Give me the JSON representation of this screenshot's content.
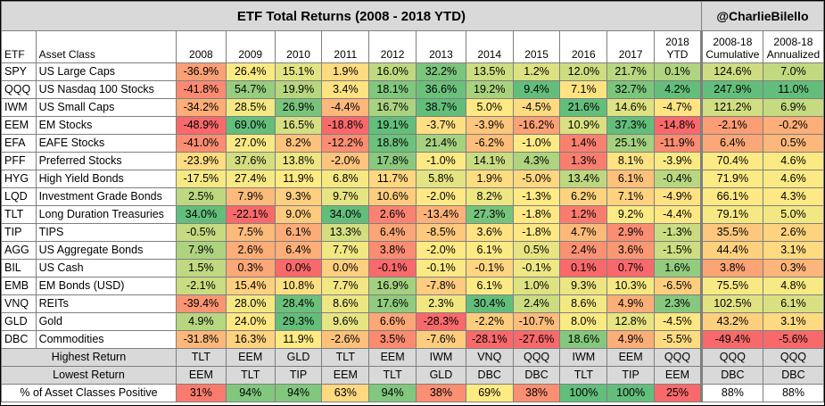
{
  "chart_data": {
    "type": "table",
    "title": "ETF Total Returns (2008 - 2018 YTD)",
    "handle": "@CharlieBilello",
    "columns": [
      "ETF",
      "Asset Class",
      "2008",
      "2009",
      "2010",
      "2011",
      "2012",
      "2013",
      "2014",
      "2015",
      "2016",
      "2017",
      "2018 YTD",
      "2008-18 Cumulative",
      "2008-18 Annualized"
    ],
    "header": {
      "etf": "ETF",
      "asset": "Asset Class",
      "years": [
        "2008",
        "2009",
        "2010",
        "2011",
        "2012",
        "2013",
        "2014",
        "2015",
        "2016",
        "2017"
      ],
      "ytd_1": "2018",
      "ytd_2": "YTD",
      "cum_1": "2008-18",
      "cum_2": "Cumulative",
      "ann_1": "2008-18",
      "ann_2": "Annualized"
    },
    "rows": [
      {
        "ticker": "SPY",
        "asset": "US Large Caps",
        "values": [
          -36.9,
          26.4,
          15.1,
          1.9,
          16.0,
          32.2,
          13.5,
          1.2,
          12.0,
          21.7,
          0.1
        ],
        "cumulative": 124.6,
        "annualized": 7.0
      },
      {
        "ticker": "QQQ",
        "asset": "US Nasdaq 100 Stocks",
        "values": [
          -41.8,
          54.7,
          19.9,
          3.4,
          18.1,
          36.6,
          19.2,
          9.4,
          7.1,
          32.7,
          4.2
        ],
        "cumulative": 247.9,
        "annualized": 11.0
      },
      {
        "ticker": "IWM",
        "asset": "US Small Caps",
        "values": [
          -34.2,
          28.5,
          26.9,
          -4.4,
          16.7,
          38.7,
          5.0,
          -4.5,
          21.6,
          14.6,
          -4.7
        ],
        "cumulative": 121.2,
        "annualized": 6.9
      },
      {
        "ticker": "EEM",
        "asset": "EM Stocks",
        "values": [
          -48.9,
          69.0,
          16.5,
          -18.8,
          19.1,
          -3.7,
          -3.9,
          -16.2,
          10.9,
          37.3,
          -14.8
        ],
        "cumulative": -2.1,
        "annualized": -0.2
      },
      {
        "ticker": "EFA",
        "asset": "EAFE Stocks",
        "values": [
          -41.0,
          27.0,
          8.2,
          -12.2,
          18.8,
          21.4,
          -6.2,
          -1.0,
          1.4,
          25.1,
          -11.9
        ],
        "cumulative": 6.4,
        "annualized": 0.5
      },
      {
        "ticker": "PFF",
        "asset": "Preferred Stocks",
        "values": [
          -23.9,
          37.6,
          13.8,
          -2.0,
          17.8,
          -1.0,
          14.1,
          4.3,
          1.3,
          8.1,
          -3.9
        ],
        "cumulative": 70.4,
        "annualized": 4.6
      },
      {
        "ticker": "HYG",
        "asset": "High Yield Bonds",
        "values": [
          -17.5,
          27.4,
          11.9,
          6.8,
          11.7,
          5.8,
          1.9,
          -5.0,
          13.4,
          6.1,
          -0.4
        ],
        "cumulative": 71.9,
        "annualized": 4.6
      },
      {
        "ticker": "LQD",
        "asset": "Investment Grade Bonds",
        "values": [
          2.5,
          7.9,
          9.3,
          9.7,
          10.6,
          -2.0,
          8.2,
          -1.3,
          6.2,
          7.1,
          -4.9
        ],
        "cumulative": 66.1,
        "annualized": 4.3
      },
      {
        "ticker": "TLT",
        "asset": "Long Duration Treasuries",
        "values": [
          34.0,
          -22.1,
          9.0,
          34.0,
          2.6,
          -13.4,
          27.3,
          -1.8,
          1.2,
          9.2,
          -4.4
        ],
        "cumulative": 79.1,
        "annualized": 5.0
      },
      {
        "ticker": "TIP",
        "asset": "TIPS",
        "values": [
          -0.5,
          7.5,
          6.1,
          13.3,
          6.4,
          -8.5,
          3.6,
          -1.8,
          4.7,
          2.9,
          -1.3
        ],
        "cumulative": 35.5,
        "annualized": 2.6
      },
      {
        "ticker": "AGG",
        "asset": "US Aggregate Bonds",
        "values": [
          7.9,
          2.6,
          6.4,
          7.7,
          3.8,
          -2.0,
          6.1,
          0.5,
          2.4,
          3.6,
          -1.5
        ],
        "cumulative": 44.4,
        "annualized": 3.1
      },
      {
        "ticker": "BIL",
        "asset": "US Cash",
        "values": [
          1.5,
          0.3,
          0.0,
          0.0,
          -0.1,
          -0.1,
          -0.1,
          -0.1,
          0.1,
          0.7,
          1.6
        ],
        "cumulative": 3.8,
        "annualized": 0.3
      },
      {
        "ticker": "EMB",
        "asset": "EM Bonds (USD)",
        "values": [
          -2.1,
          15.4,
          10.8,
          7.7,
          16.9,
          -7.8,
          6.1,
          1.0,
          9.3,
          10.3,
          -6.5
        ],
        "cumulative": 75.5,
        "annualized": 4.8
      },
      {
        "ticker": "VNQ",
        "asset": "REITs",
        "values": [
          -39.4,
          28.0,
          28.4,
          8.6,
          17.6,
          2.3,
          30.4,
          2.4,
          8.6,
          4.9,
          2.3
        ],
        "cumulative": 102.5,
        "annualized": 6.1
      },
      {
        "ticker": "GLD",
        "asset": "Gold",
        "values": [
          4.9,
          24.0,
          29.3,
          9.6,
          6.6,
          -28.3,
          -2.2,
          -10.7,
          8.0,
          12.8,
          -4.5
        ],
        "cumulative": 43.2,
        "annualized": 3.1
      },
      {
        "ticker": "DBC",
        "asset": "Commodities",
        "values": [
          -31.8,
          16.3,
          11.9,
          -2.6,
          3.5,
          -7.6,
          -28.1,
          -27.6,
          18.6,
          4.9,
          -5.5
        ],
        "cumulative": -49.4,
        "annualized": -5.6
      }
    ],
    "highest_return": {
      "label": "Highest Return",
      "values": [
        "TLT",
        "EEM",
        "GLD",
        "TLT",
        "EEM",
        "IWM",
        "VNQ",
        "QQQ",
        "IWM",
        "EEM",
        "QQQ",
        "QQQ",
        "QQQ"
      ]
    },
    "lowest_return": {
      "label": "Lowest Return",
      "values": [
        "EEM",
        "TLT",
        "TIP",
        "EEM",
        "TLT",
        "GLD",
        "DBC",
        "DBC",
        "TLT",
        "TIP",
        "EEM",
        "DBC",
        "DBC"
      ]
    },
    "pct_positive": {
      "label": "% of Asset Classes Positive",
      "values": [
        "31%",
        "94%",
        "94%",
        "63%",
        "94%",
        "38%",
        "69%",
        "38%",
        "100%",
        "100%",
        "25%",
        "88%",
        "88%"
      ],
      "fractions": [
        0.31,
        0.94,
        0.94,
        0.63,
        0.94,
        0.38,
        0.69,
        0.38,
        1.0,
        1.0,
        0.25,
        0.88,
        0.88
      ]
    },
    "colors": {
      "low": "#f8696b",
      "mid": "#ffeb84",
      "high": "#63be7b",
      "header_bg": "#d9d9d9"
    }
  }
}
